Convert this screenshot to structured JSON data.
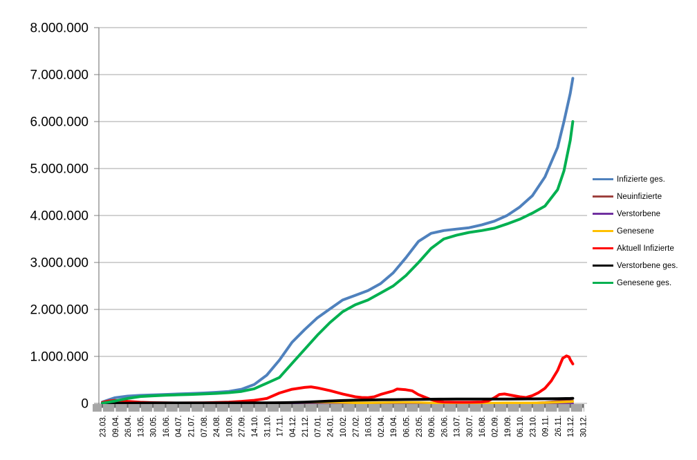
{
  "chart_data": {
    "type": "line",
    "title": "",
    "grid": true,
    "legend_position": "right",
    "ylim": [
      0,
      8000000
    ],
    "y_tick_labels": [
      "0",
      "1.000.000",
      "2.000.000",
      "3.000.000",
      "4.000.000",
      "5.000.000",
      "6.000.000",
      "7.000.000",
      "8.000.000"
    ],
    "categories": [
      "23.03.",
      "09.04.",
      "26.04.",
      "13.05.",
      "30.05.",
      "16.06.",
      "04.07.",
      "21.07.",
      "07.08.",
      "24.08.",
      "10.09.",
      "27.09.",
      "14.10.",
      "31.10.",
      "17.11.",
      "04.12.",
      "21.12.",
      "07.01.",
      "24.01.",
      "10.02.",
      "27.02.",
      "16.03.",
      "02.04.",
      "19.04.",
      "06.05.",
      "23.05.",
      "09.06.",
      "26.06.",
      "13.07.",
      "30.07.",
      "16.08.",
      "02.09.",
      "19.09.",
      "06.10.",
      "23.10.",
      "09.11.",
      "26.11.",
      "13.12.",
      "30.12."
    ],
    "axis_colors": {
      "gridline": "#A6A6A6",
      "axis_line": "#808080",
      "axis_band": "#A6A6A6",
      "axis_band_tick_dark": "#6E6E6E",
      "axis_band_tick_light": "#FFFFFF",
      "label_color": "#000000"
    },
    "series": [
      {
        "name": "Infizierte ges.",
        "color": "#4F81BD",
        "width": 4,
        "points": [
          [
            0,
            30000
          ],
          [
            1,
            120000
          ],
          [
            2,
            155000
          ],
          [
            3,
            170000
          ],
          [
            4,
            180000
          ],
          [
            5,
            190000
          ],
          [
            6,
            200000
          ],
          [
            7,
            210000
          ],
          [
            8,
            220000
          ],
          [
            9,
            235000
          ],
          [
            10,
            255000
          ],
          [
            11,
            300000
          ],
          [
            12,
            400000
          ],
          [
            13,
            600000
          ],
          [
            14,
            920000
          ],
          [
            15,
            1300000
          ],
          [
            16,
            1570000
          ],
          [
            17,
            1820000
          ],
          [
            18,
            2010000
          ],
          [
            19,
            2200000
          ],
          [
            20,
            2300000
          ],
          [
            21,
            2400000
          ],
          [
            22,
            2550000
          ],
          [
            23,
            2780000
          ],
          [
            24,
            3100000
          ],
          [
            25,
            3450000
          ],
          [
            26,
            3620000
          ],
          [
            27,
            3680000
          ],
          [
            28,
            3710000
          ],
          [
            29,
            3740000
          ],
          [
            30,
            3800000
          ],
          [
            31,
            3880000
          ],
          [
            32,
            4000000
          ],
          [
            33,
            4180000
          ],
          [
            34,
            4420000
          ],
          [
            35,
            4820000
          ],
          [
            36,
            5450000
          ],
          [
            36.5,
            6000000
          ],
          [
            37,
            6600000
          ],
          [
            37.2,
            6920000
          ]
        ]
      },
      {
        "name": "Neuinfizierte",
        "color": "#9E413E",
        "width": 3,
        "points": [
          [
            0,
            3000
          ],
          [
            1,
            6000
          ],
          [
            2,
            3500
          ],
          [
            3,
            2000
          ],
          [
            4,
            1200
          ],
          [
            6,
            800
          ],
          [
            8,
            1000
          ],
          [
            10,
            1800
          ],
          [
            12,
            5000
          ],
          [
            13,
            9000
          ],
          [
            14,
            18000
          ],
          [
            15,
            20000
          ],
          [
            16,
            25000
          ],
          [
            17,
            22000
          ],
          [
            18,
            15000
          ],
          [
            19,
            11000
          ],
          [
            20,
            8000
          ],
          [
            21,
            9000
          ],
          [
            22,
            13000
          ],
          [
            23,
            18000
          ],
          [
            24,
            15000
          ],
          [
            25,
            9000
          ],
          [
            26,
            4500
          ],
          [
            27,
            2000
          ],
          [
            28,
            1200
          ],
          [
            29,
            1100
          ],
          [
            30,
            2200
          ],
          [
            31,
            7000
          ],
          [
            32,
            9500
          ],
          [
            33,
            8000
          ],
          [
            34,
            10000
          ],
          [
            35,
            22000
          ],
          [
            36,
            48000
          ],
          [
            36.7,
            70000
          ],
          [
            37,
            60000
          ],
          [
            37.2,
            52000
          ]
        ]
      },
      {
        "name": "Verstorbene",
        "color": "#7030A0",
        "width": 3,
        "points": [
          [
            0,
            200
          ],
          [
            4,
            300
          ],
          [
            8,
            100
          ],
          [
            12,
            300
          ],
          [
            16,
            900
          ],
          [
            18,
            1000
          ],
          [
            20,
            700
          ],
          [
            24,
            300
          ],
          [
            26,
            250
          ],
          [
            28,
            100
          ],
          [
            30,
            100
          ],
          [
            32,
            200
          ],
          [
            34,
            200
          ],
          [
            36,
            400
          ],
          [
            37.2,
            500
          ]
        ]
      },
      {
        "name": "Genesene",
        "color": "#FFC000",
        "width": 3.5,
        "points": [
          [
            0,
            2000
          ],
          [
            1,
            4500
          ],
          [
            2,
            5000
          ],
          [
            3,
            3000
          ],
          [
            4,
            2000
          ],
          [
            6,
            1200
          ],
          [
            8,
            1300
          ],
          [
            10,
            2000
          ],
          [
            12,
            4000
          ],
          [
            13,
            7000
          ],
          [
            14,
            12000
          ],
          [
            15,
            17000
          ],
          [
            16,
            20000
          ],
          [
            17,
            25000
          ],
          [
            18,
            22000
          ],
          [
            19,
            17000
          ],
          [
            20,
            12000
          ],
          [
            21,
            11000
          ],
          [
            22,
            14000
          ],
          [
            23,
            18000
          ],
          [
            24,
            20000
          ],
          [
            25,
            18000
          ],
          [
            26,
            12000
          ],
          [
            27,
            6000
          ],
          [
            28,
            3000
          ],
          [
            29,
            2500
          ],
          [
            30,
            3500
          ],
          [
            31,
            7000
          ],
          [
            32,
            10000
          ],
          [
            33,
            8500
          ],
          [
            34,
            9500
          ],
          [
            35,
            15000
          ],
          [
            36,
            24000
          ],
          [
            37,
            36000
          ],
          [
            37.2,
            40000
          ]
        ]
      },
      {
        "name": "Aktuell Infizierte",
        "color": "#FF0000",
        "width": 4,
        "points": [
          [
            0,
            18000
          ],
          [
            0.5,
            50000
          ],
          [
            1,
            62000
          ],
          [
            1.5,
            57000
          ],
          [
            2,
            42000
          ],
          [
            3,
            24000
          ],
          [
            4,
            15000
          ],
          [
            5,
            10000
          ],
          [
            6,
            8000
          ],
          [
            7,
            9000
          ],
          [
            8,
            12000
          ],
          [
            9,
            17000
          ],
          [
            10,
            25000
          ],
          [
            11,
            42000
          ],
          [
            12,
            65000
          ],
          [
            13,
            105000
          ],
          [
            14,
            220000
          ],
          [
            15,
            300000
          ],
          [
            16,
            340000
          ],
          [
            16.5,
            352000
          ],
          [
            17,
            330000
          ],
          [
            18,
            270000
          ],
          [
            19,
            200000
          ],
          [
            20,
            140000
          ],
          [
            20.5,
            125000
          ],
          [
            21,
            122000
          ],
          [
            21.5,
            140000
          ],
          [
            22,
            190000
          ],
          [
            23,
            265000
          ],
          [
            23.3,
            305000
          ],
          [
            24,
            290000
          ],
          [
            24.5,
            268000
          ],
          [
            25,
            185000
          ],
          [
            26,
            80000
          ],
          [
            26.5,
            42000
          ],
          [
            27,
            28000
          ],
          [
            28,
            24000
          ],
          [
            29,
            23000
          ],
          [
            30,
            30000
          ],
          [
            30.5,
            50000
          ],
          [
            31,
            120000
          ],
          [
            31.4,
            190000
          ],
          [
            31.8,
            200000
          ],
          [
            32.3,
            175000
          ],
          [
            33,
            140000
          ],
          [
            33.5,
            125000
          ],
          [
            34,
            165000
          ],
          [
            34.5,
            230000
          ],
          [
            35,
            320000
          ],
          [
            35.5,
            480000
          ],
          [
            36,
            700000
          ],
          [
            36.4,
            960000
          ],
          [
            36.7,
            1010000
          ],
          [
            36.9,
            990000
          ],
          [
            37,
            930000
          ],
          [
            37.2,
            840000
          ]
        ]
      },
      {
        "name": "Verstorbene ges.",
        "color": "#000000",
        "width": 4,
        "points": [
          [
            0,
            1000
          ],
          [
            1,
            3000
          ],
          [
            2,
            5000
          ],
          [
            3,
            7000
          ],
          [
            4,
            8500
          ],
          [
            6,
            9000
          ],
          [
            8,
            9200
          ],
          [
            10,
            9500
          ],
          [
            12,
            10000
          ],
          [
            13,
            11000
          ],
          [
            14,
            13000
          ],
          [
            15,
            18000
          ],
          [
            16,
            26000
          ],
          [
            17,
            37000
          ],
          [
            18,
            50000
          ],
          [
            19,
            60000
          ],
          [
            20,
            67000
          ],
          [
            21,
            72000
          ],
          [
            22,
            76000
          ],
          [
            23,
            79000
          ],
          [
            24,
            82000
          ],
          [
            25,
            85000
          ],
          [
            26,
            88000
          ],
          [
            27,
            90000
          ],
          [
            28,
            90500
          ],
          [
            29,
            91500
          ],
          [
            30,
            92000
          ],
          [
            31,
            92500
          ],
          [
            32,
            93000
          ],
          [
            33,
            93500
          ],
          [
            34,
            95000
          ],
          [
            35,
            97000
          ],
          [
            36,
            100000
          ],
          [
            37,
            105000
          ],
          [
            37.2,
            107000
          ]
        ]
      },
      {
        "name": "Genesene ges.",
        "color": "#00B050",
        "width": 4,
        "points": [
          [
            0,
            4000
          ],
          [
            1,
            50000
          ],
          [
            2,
            105000
          ],
          [
            3,
            145000
          ],
          [
            4,
            160000
          ],
          [
            5,
            172000
          ],
          [
            6,
            182000
          ],
          [
            7,
            190000
          ],
          [
            8,
            200000
          ],
          [
            9,
            212000
          ],
          [
            10,
            228000
          ],
          [
            11,
            255000
          ],
          [
            12,
            310000
          ],
          [
            13,
            430000
          ],
          [
            14,
            550000
          ],
          [
            15,
            850000
          ],
          [
            16,
            1150000
          ],
          [
            17,
            1450000
          ],
          [
            18,
            1720000
          ],
          [
            19,
            1950000
          ],
          [
            20,
            2100000
          ],
          [
            21,
            2200000
          ],
          [
            22,
            2350000
          ],
          [
            23,
            2500000
          ],
          [
            24,
            2720000
          ],
          [
            25,
            3000000
          ],
          [
            26,
            3300000
          ],
          [
            27,
            3500000
          ],
          [
            28,
            3580000
          ],
          [
            29,
            3640000
          ],
          [
            30,
            3680000
          ],
          [
            31,
            3730000
          ],
          [
            32,
            3820000
          ],
          [
            33,
            3920000
          ],
          [
            34,
            4050000
          ],
          [
            35,
            4200000
          ],
          [
            36,
            4550000
          ],
          [
            36.5,
            4950000
          ],
          [
            37,
            5600000
          ],
          [
            37.2,
            6000000
          ]
        ]
      }
    ]
  }
}
